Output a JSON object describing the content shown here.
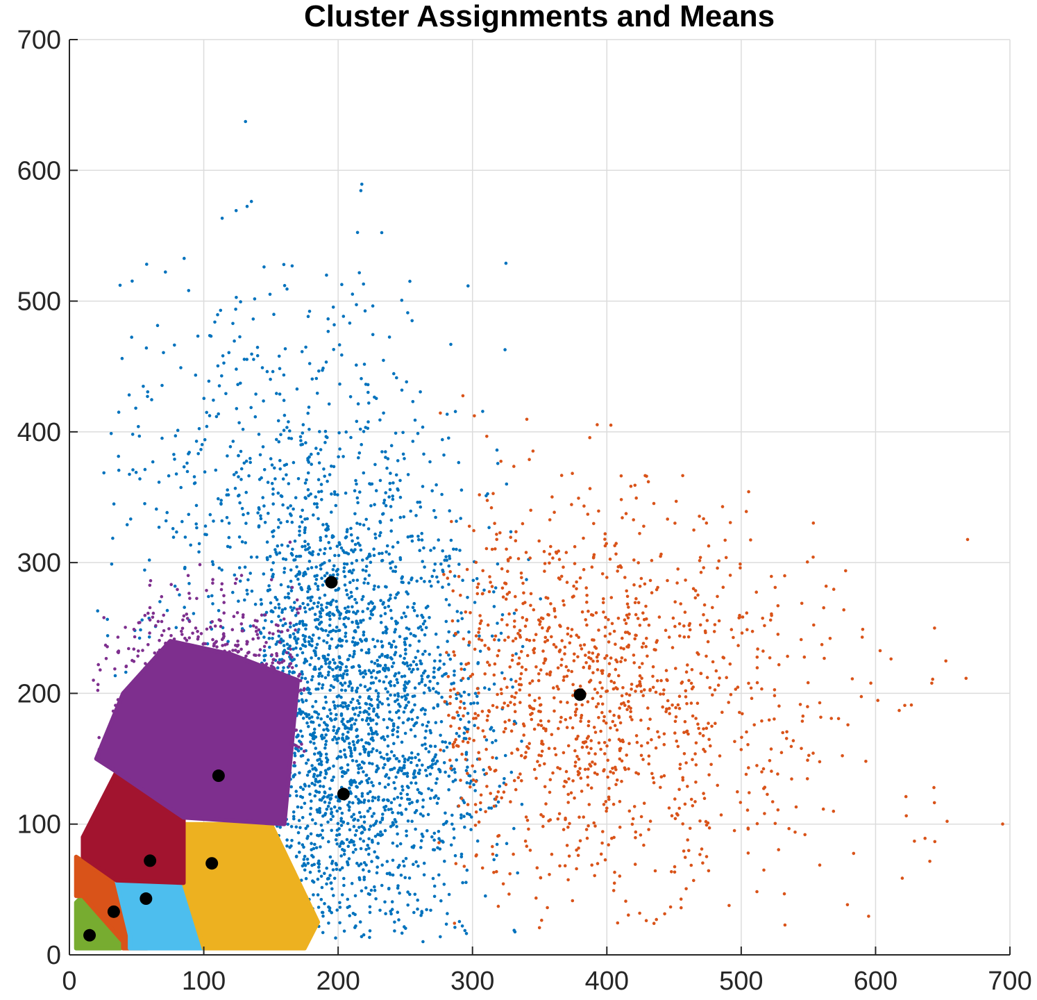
{
  "chart_data": {
    "type": "scatter",
    "title": "Cluster Assignments and Means",
    "xlabel": "",
    "ylabel": "",
    "xlim": [
      0,
      700
    ],
    "ylim": [
      0,
      700
    ],
    "xticks": [
      "0",
      "100",
      "200",
      "300",
      "400",
      "500",
      "600",
      "700"
    ],
    "yticks": [
      "0",
      "100",
      "200",
      "300",
      "400",
      "500",
      "600",
      "700"
    ],
    "grid": true,
    "legend": "none",
    "clusters": [
      {
        "color": "#77AC30",
        "mean": [
          15,
          15
        ],
        "polygon": [
          [
            5,
            40
          ],
          [
            5,
            5
          ],
          [
            38,
            5
          ],
          [
            40,
            10
          ],
          [
            10,
            45
          ]
        ]
      },
      {
        "color": "#D95319",
        "mean": [
          33,
          33
        ],
        "polygon": [
          [
            5,
            45
          ],
          [
            10,
            45
          ],
          [
            40,
            10
          ],
          [
            40,
            5
          ],
          [
            58,
            5
          ],
          [
            50,
            25
          ],
          [
            35,
            55
          ],
          [
            5,
            75
          ]
        ]
      },
      {
        "color": "#4DBEEE",
        "mean": [
          57,
          43
        ],
        "polygon": [
          [
            35,
            57
          ],
          [
            85,
            55
          ],
          [
            104,
            20
          ],
          [
            100,
            5
          ],
          [
            45,
            5
          ],
          [
            45,
            15
          ]
        ]
      },
      {
        "color": "#EDB120",
        "mean": [
          106,
          70
        ],
        "polygon": [
          [
            85,
            55
          ],
          [
            85,
            100
          ],
          [
            150,
            100
          ],
          [
            185,
            25
          ],
          [
            175,
            5
          ],
          [
            100,
            5
          ]
        ]
      },
      {
        "color": "#A2142F",
        "mean": [
          60,
          72
        ],
        "polygon": [
          [
            10,
            90
          ],
          [
            35,
            140
          ],
          [
            85,
            105
          ],
          [
            85,
            55
          ],
          [
            35,
            57
          ],
          [
            10,
            75
          ]
        ]
      },
      {
        "color": "#7E2F8E",
        "mean": [
          111,
          137
        ],
        "polygon": [
          [
            20,
            150
          ],
          [
            40,
            200
          ],
          [
            75,
            240
          ],
          [
            120,
            230
          ],
          [
            170,
            210
          ],
          [
            160,
            100
          ],
          [
            85,
            105
          ],
          [
            35,
            140
          ]
        ]
      },
      {
        "color": "#0072BD",
        "mean": [
          195,
          285
        ],
        "polygon": []
      },
      {
        "color": "#0072BD",
        "mean": [
          204,
          123
        ],
        "polygon": []
      },
      {
        "color": "#D95319",
        "mean": [
          380,
          199
        ],
        "polygon": []
      }
    ]
  }
}
